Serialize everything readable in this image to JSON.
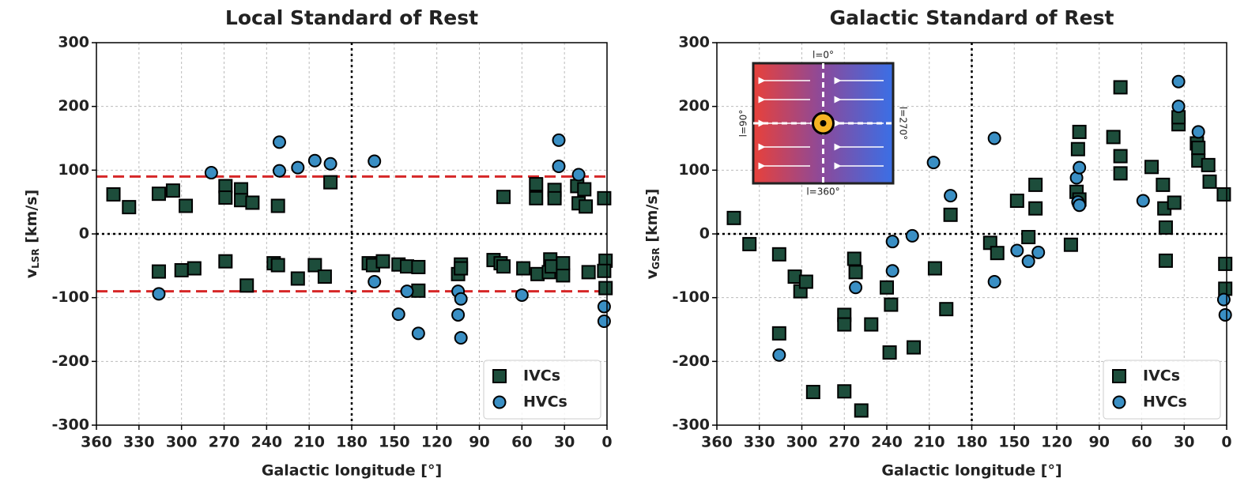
{
  "chart_data": [
    {
      "type": "scatter",
      "title": "Local Standard of Rest",
      "xlabel": "Galactic longitude [°]",
      "ylabel": {
        "main": "v",
        "sub": "LSR",
        "unit": " [km/s]"
      },
      "xlim": [
        360,
        0
      ],
      "ylim": [
        -300,
        300
      ],
      "xticks": [
        360,
        330,
        300,
        270,
        240,
        210,
        180,
        150,
        120,
        90,
        60,
        30,
        0
      ],
      "yticks": [
        -300,
        -200,
        -100,
        0,
        100,
        200,
        300
      ],
      "grid": true,
      "legend": "lower right",
      "hlines": [
        {
          "value": 90,
          "color": "#d62728",
          "style": "dashed"
        },
        {
          "value": -90,
          "color": "#d62728",
          "style": "dashed"
        },
        {
          "value": 0,
          "color": "#000000",
          "style": "dotted"
        }
      ],
      "vlines": [
        {
          "value": 180,
          "color": "#000000",
          "style": "dotted"
        }
      ],
      "series": [
        {
          "name": "IVCs",
          "color": "#1d4d3b",
          "marker": "square",
          "x": [
            348,
            337,
            316,
            306,
            297,
            269,
            269,
            258,
            258,
            250,
            232,
            195,
            73,
            50,
            50,
            37,
            37,
            21,
            16,
            20,
            15,
            2,
            316,
            300,
            291,
            269,
            254,
            235,
            232,
            218,
            206,
            199,
            168,
            165,
            158,
            147,
            141,
            133,
            133,
            105,
            103,
            103,
            80,
            75,
            73,
            59,
            49,
            41,
            40,
            39,
            31,
            31,
            13,
            1,
            2,
            1
          ],
          "values": [
            62,
            42,
            63,
            68,
            44,
            75,
            57,
            70,
            53,
            49,
            44,
            81,
            58,
            78,
            56,
            69,
            56,
            75,
            70,
            48,
            43,
            56,
            -59,
            -57,
            -54,
            -43,
            -81,
            -46,
            -49,
            -70,
            -49,
            -67,
            -46,
            -49,
            -43,
            -48,
            -51,
            -52,
            -89,
            -63,
            -48,
            -54,
            -41,
            -46,
            -51,
            -54,
            -63,
            -60,
            -40,
            -51,
            -65,
            -46,
            -60,
            -42,
            -58,
            -85
          ]
        },
        {
          "name": "HVCs",
          "color": "#3a8fc4",
          "marker": "circle",
          "x": [
            316,
            279,
            231,
            231,
            218,
            206,
            195,
            164,
            164,
            147,
            141,
            133,
            105,
            105,
            103,
            103,
            60,
            34,
            34,
            20,
            2,
            2
          ],
          "values": [
            -94,
            96,
            144,
            99,
            104,
            115,
            110,
            114,
            -75,
            -126,
            -90,
            -156,
            -90,
            -127,
            -102,
            -163,
            -96,
            147,
            106,
            93,
            -114,
            -137
          ]
        }
      ]
    },
    {
      "type": "scatter",
      "title": "Galactic Standard of Rest",
      "xlabel": "Galactic longitude [°]",
      "ylabel": {
        "main": "v",
        "sub": "GSR",
        "unit": " [km/s]"
      },
      "xlim": [
        360,
        0
      ],
      "ylim": [
        -300,
        300
      ],
      "xticks": [
        360,
        330,
        300,
        270,
        240,
        210,
        180,
        150,
        120,
        90,
        60,
        30,
        0
      ],
      "yticks": [
        -300,
        -200,
        -100,
        0,
        100,
        200,
        300
      ],
      "grid": true,
      "legend": "lower right",
      "hlines": [
        {
          "value": 0,
          "color": "#000000",
          "style": "dotted"
        }
      ],
      "vlines": [
        {
          "value": 180,
          "color": "#000000",
          "style": "dotted"
        }
      ],
      "inset": {
        "top": "l=0°",
        "left": "l=90°",
        "right": "l=270°",
        "bottom": "l=360°"
      },
      "series": [
        {
          "name": "IVCs",
          "color": "#1d4d3b",
          "marker": "square",
          "x": [
            348,
            337,
            316,
            316,
            305,
            301,
            297,
            292,
            270,
            270,
            270,
            263,
            262,
            258,
            251,
            240,
            238,
            237,
            221,
            206,
            198,
            195,
            167,
            162,
            148,
            140,
            135,
            135,
            110,
            105,
            104,
            106,
            104,
            80,
            75,
            75,
            75,
            53,
            45,
            44,
            43,
            43,
            37,
            34,
            34,
            21,
            20,
            20,
            13,
            12,
            2,
            1,
            1
          ],
          "values": [
            25,
            -16,
            -32,
            -156,
            -67,
            -90,
            -75,
            -248,
            -127,
            -142,
            -247,
            -39,
            -60,
            -277,
            -142,
            -84,
            -186,
            -111,
            -178,
            -54,
            -118,
            30,
            -14,
            -30,
            52,
            -5,
            40,
            77,
            -17,
            133,
            160,
            66,
            54,
            152,
            230,
            122,
            95,
            105,
            77,
            40,
            10,
            -42,
            49,
            172,
            183,
            142,
            135,
            115,
            108,
            82,
            62,
            -47,
            -86
          ]
        },
        {
          "name": "HVCs",
          "color": "#3a8fc4",
          "marker": "circle",
          "x": [
            316,
            262,
            236,
            236,
            222,
            207,
            195,
            164,
            164,
            148,
            140,
            133,
            106,
            104,
            105,
            104,
            59,
            34,
            34,
            20,
            2,
            1
          ],
          "values": [
            -190,
            -84,
            -12,
            -58,
            -3,
            112,
            60,
            150,
            -75,
            -26,
            -43,
            -29,
            88,
            104,
            50,
            45,
            52,
            239,
            200,
            160,
            -103,
            -127
          ]
        }
      ]
    }
  ]
}
